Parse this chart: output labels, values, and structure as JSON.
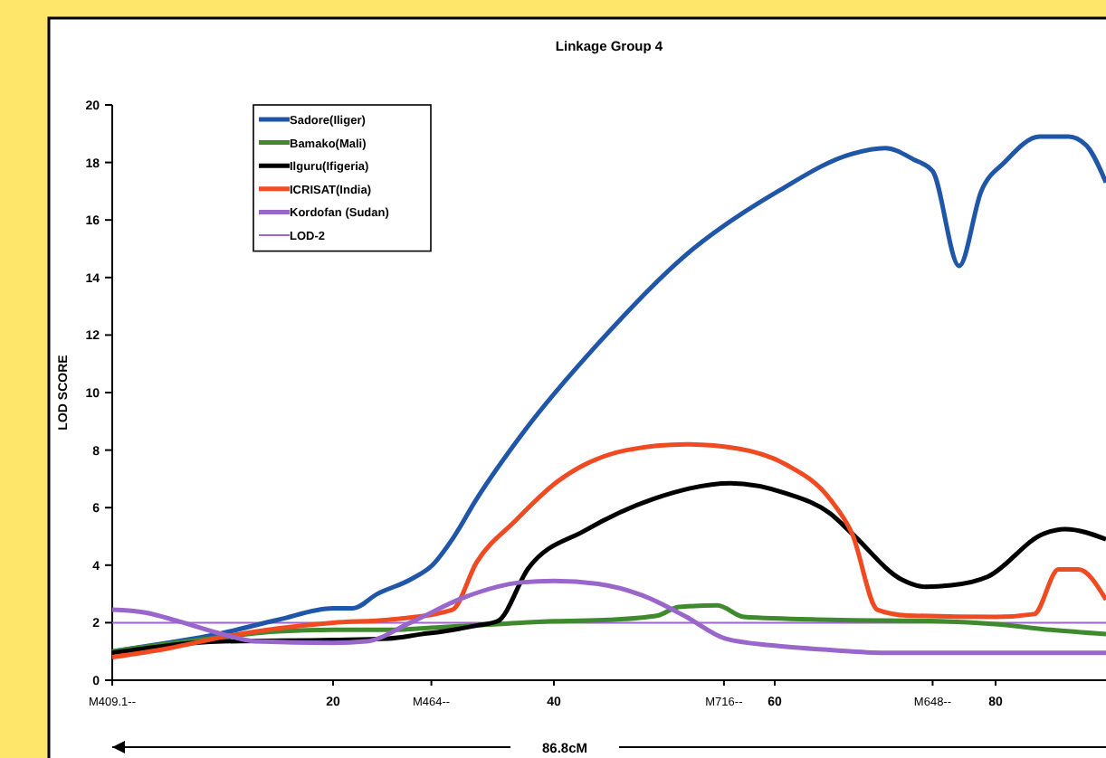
{
  "chart_data": {
    "type": "line",
    "title": "Linkage Group 4",
    "ylabel": "LOD SCORE",
    "xlim": [
      0,
      90
    ],
    "ylim": [
      0,
      20
    ],
    "xticks": [
      {
        "value": 0,
        "label": "M409.1--"
      },
      20,
      {
        "value": 28.9,
        "label": "M464--"
      },
      40,
      {
        "value": 55.4,
        "label": "M716--"
      },
      60,
      {
        "value": 74.3,
        "label": "M648--"
      },
      80
    ],
    "yticks": [
      0,
      2,
      4,
      6,
      8,
      10,
      12,
      14,
      16,
      18,
      20
    ],
    "grid": false,
    "legend": "top left",
    "marker": "none",
    "line_style": "solid",
    "series": [
      {
        "name": "Sadore(Iliger)",
        "color": "#1f56a8",
        "x": [
          0,
          5,
          9.5,
          15,
          20,
          21.8,
          24,
          27,
          29,
          30.8,
          33,
          37.4,
          44,
          52,
          60.3,
          67,
          70,
          72.6,
          74.3,
          76.7,
          78.7,
          80.8,
          84,
          86.6,
          88.2,
          90
        ],
        "values": [
          1.0,
          1.3,
          1.6,
          2.1,
          2.5,
          2.5,
          3.0,
          3.5,
          4.0,
          4.9,
          6.3,
          8.7,
          11.7,
          14.8,
          17.0,
          18.3,
          18.5,
          18.1,
          17.7,
          14.4,
          17.0,
          18.0,
          18.9,
          18.9,
          18.6,
          17.3
        ]
      },
      {
        "name": "Bamako(Mali)",
        "color": "#3f8a2e",
        "x": [
          0,
          10,
          15,
          20,
          25,
          30,
          35,
          40,
          45,
          49.4,
          51.3,
          54.8,
          57.2,
          65,
          75,
          80,
          85,
          90
        ],
        "values": [
          1.0,
          1.5,
          1.7,
          1.75,
          1.75,
          1.85,
          1.95,
          2.05,
          2.1,
          2.25,
          2.55,
          2.6,
          2.2,
          2.1,
          2.05,
          1.95,
          1.75,
          1.6
        ]
      },
      {
        "name": "Ilguru(Ifigeria)",
        "color": "#000000",
        "x": [
          0,
          10,
          20,
          25,
          28,
          30,
          33,
          34.9,
          37.7,
          42.8,
          49,
          56,
          61,
          65,
          67,
          71.5,
          73.6,
          76,
          79.3,
          84.4,
          86.3,
          90
        ],
        "values": [
          0.95,
          1.35,
          1.4,
          1.45,
          1.6,
          1.7,
          1.9,
          2.05,
          3.9,
          5.2,
          6.3,
          6.85,
          6.5,
          5.8,
          5.1,
          3.5,
          3.25,
          3.3,
          3.6,
          5.1,
          5.25,
          4.9
        ]
      },
      {
        "name": "ICRISAT(India)",
        "color": "#f04a22",
        "x": [
          0,
          5,
          10,
          15,
          20,
          25,
          30.8,
          33,
          36.4,
          40.3,
          46.6,
          52,
          56.7,
          61,
          65,
          67,
          69.3,
          72,
          80,
          83.5,
          85.7,
          87.5,
          90
        ],
        "values": [
          0.8,
          1.1,
          1.5,
          1.8,
          2.0,
          2.1,
          2.45,
          4.1,
          5.5,
          6.9,
          8.0,
          8.2,
          8.05,
          7.5,
          6.3,
          5.1,
          2.45,
          2.25,
          2.2,
          2.3,
          3.85,
          3.85,
          2.8
        ]
      },
      {
        "name": "Kordofan (Sudan)",
        "color": "#9966cc",
        "x": [
          0,
          3,
          6,
          10,
          13,
          20,
          23,
          27,
          32,
          37,
          40,
          44,
          48,
          52,
          55.5,
          60,
          65,
          70,
          80,
          90
        ],
        "values": [
          2.45,
          2.35,
          2.05,
          1.6,
          1.35,
          1.3,
          1.35,
          2.0,
          2.9,
          3.4,
          3.45,
          3.35,
          2.95,
          2.2,
          1.45,
          1.2,
          1.05,
          0.95,
          0.95,
          0.95
        ]
      }
    ],
    "ref_lines": [
      {
        "axis": "y",
        "value": 2,
        "label": "LOD-2",
        "color": "#a066cc"
      }
    ],
    "annotations": [
      "86.8cM"
    ]
  }
}
